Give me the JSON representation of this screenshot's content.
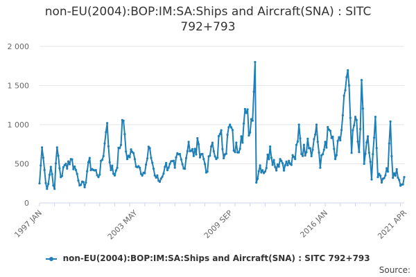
{
  "chart_data": {
    "type": "line",
    "title_line1": "non-EU(2004):BOP:IM:SA:Ships and Aircraft(SNA) : SITC",
    "title_line2": "792+793",
    "y_ticks": [
      "0",
      "500",
      "1 000",
      "1 500",
      "2 000"
    ],
    "ylim": [
      0,
      2000
    ],
    "x_tick_labels": [
      "1997 JAN",
      "2003 MAY",
      "2009 SEP",
      "2016 JAN",
      "2021 APR"
    ],
    "x_tick_dates": [
      "1997-01",
      "2003-05",
      "2009-09",
      "2016-01",
      "2021-04"
    ],
    "xlim": [
      "1997-01",
      "2021-04"
    ],
    "grid": true,
    "legend_position": "bottom",
    "series": [
      {
        "name": "non-EU(2004):BOP:IM:SA:Ships and Aircraft(SNA) : SITC 792+793",
        "color": "#1f7fb6",
        "x_start": "1997-01",
        "frequency": "monthly",
        "anchors": [
          [
            "1997-01",
            250
          ],
          [
            "1997-03",
            710
          ],
          [
            "1997-05",
            420
          ],
          [
            "1997-07",
            180
          ],
          [
            "1997-10",
            460
          ],
          [
            "1998-01",
            180
          ],
          [
            "1998-03",
            710
          ],
          [
            "1998-06",
            330
          ],
          [
            "1998-10",
            500
          ],
          [
            "1999-02",
            560
          ],
          [
            "1999-06",
            420
          ],
          [
            "1999-10",
            230
          ],
          [
            "2000-01",
            200
          ],
          [
            "2000-04",
            520
          ],
          [
            "2000-08",
            420
          ],
          [
            "2001-01",
            360
          ],
          [
            "2001-05",
            760
          ],
          [
            "2001-07",
            1020
          ],
          [
            "2001-09",
            520
          ],
          [
            "2002-01",
            350
          ],
          [
            "2002-05",
            700
          ],
          [
            "2002-08",
            1050
          ],
          [
            "2002-11",
            560
          ],
          [
            "2003-03",
            650
          ],
          [
            "2003-05",
            560
          ],
          [
            "2003-09",
            450
          ],
          [
            "2004-01",
            380
          ],
          [
            "2004-05",
            700
          ],
          [
            "2004-09",
            350
          ],
          [
            "2005-01",
            270
          ],
          [
            "2005-05",
            460
          ],
          [
            "2005-09",
            500
          ],
          [
            "2006-01",
            450
          ],
          [
            "2006-04",
            620
          ],
          [
            "2006-08",
            440
          ],
          [
            "2006-12",
            780
          ],
          [
            "2007-04",
            600
          ],
          [
            "2007-08",
            750
          ],
          [
            "2007-12",
            560
          ],
          [
            "2008-03",
            400
          ],
          [
            "2008-06",
            720
          ],
          [
            "2008-10",
            560
          ],
          [
            "2009-01",
            880
          ],
          [
            "2009-05",
            620
          ],
          [
            "2009-09",
            1000
          ],
          [
            "2010-01",
            650
          ],
          [
            "2010-06",
            850
          ],
          [
            "2010-10",
            1150
          ],
          [
            "2011-01",
            900
          ],
          [
            "2011-04",
            1420
          ],
          [
            "2011-05",
            1800
          ],
          [
            "2011-06",
            260
          ],
          [
            "2011-09",
            480
          ],
          [
            "2012-01",
            400
          ],
          [
            "2012-05",
            720
          ],
          [
            "2012-09",
            460
          ],
          [
            "2013-01",
            560
          ],
          [
            "2013-05",
            480
          ],
          [
            "2013-09",
            500
          ],
          [
            "2014-01",
            560
          ],
          [
            "2014-04",
            1000
          ],
          [
            "2014-07",
            600
          ],
          [
            "2014-11",
            820
          ],
          [
            "2015-03",
            680
          ],
          [
            "2015-06",
            1000
          ],
          [
            "2015-09",
            450
          ],
          [
            "2016-01",
            780
          ],
          [
            "2016-05",
            920
          ],
          [
            "2016-09",
            560
          ],
          [
            "2017-01",
            800
          ],
          [
            "2017-05",
            1440
          ],
          [
            "2017-08",
            1500
          ],
          [
            "2017-10",
            640
          ],
          [
            "2018-01",
            1100
          ],
          [
            "2018-04",
            650
          ],
          [
            "2018-06",
            1570
          ],
          [
            "2018-08",
            500
          ],
          [
            "2018-11",
            850
          ],
          [
            "2019-02",
            300
          ],
          [
            "2019-05",
            1100
          ],
          [
            "2019-07",
            330
          ],
          [
            "2019-11",
            310
          ],
          [
            "2020-03",
            400
          ],
          [
            "2020-05",
            1040
          ],
          [
            "2020-07",
            320
          ],
          [
            "2020-10",
            430
          ],
          [
            "2021-01",
            220
          ],
          [
            "2021-04",
            330
          ]
        ]
      }
    ],
    "source_label": "Source:"
  }
}
